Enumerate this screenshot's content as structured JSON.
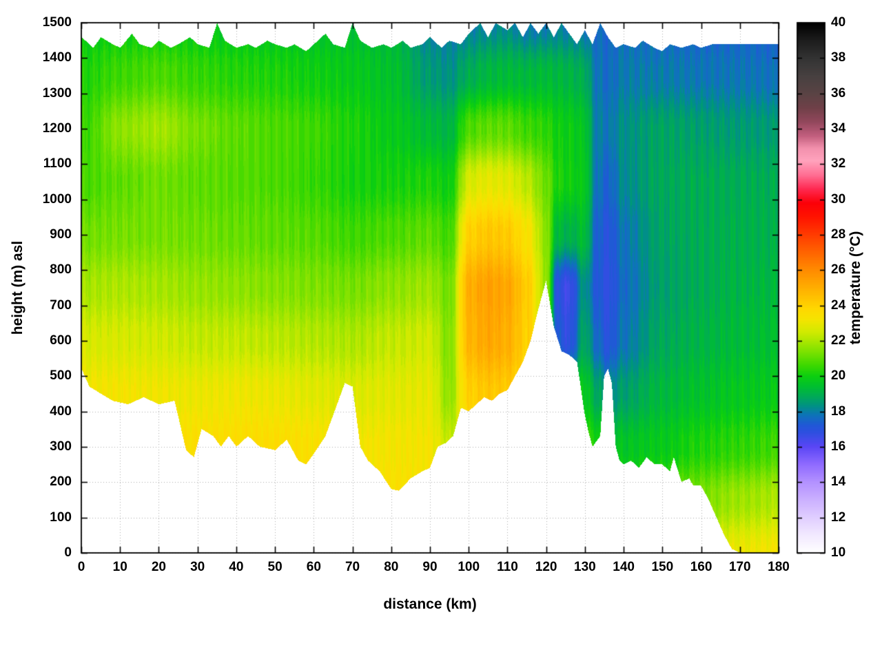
{
  "chart_data": {
    "type": "heatmap",
    "title": "",
    "xlabel": "distance (km)",
    "ylabel": "height (m) asl",
    "colorbar_label": "temperature (°C)",
    "xlim": [
      0,
      180
    ],
    "ylim": [
      0,
      1500
    ],
    "clim": [
      10,
      40
    ],
    "grid": true,
    "legend_position": "colorbar-right",
    "x_ticks": [
      0,
      10,
      20,
      30,
      40,
      50,
      60,
      70,
      80,
      90,
      100,
      110,
      120,
      130,
      140,
      150,
      160,
      170,
      180
    ],
    "y_ticks": [
      0,
      100,
      200,
      300,
      400,
      500,
      600,
      700,
      800,
      900,
      1000,
      1100,
      1200,
      1300,
      1400,
      1500
    ],
    "cb_ticks": [
      10,
      12,
      14,
      16,
      18,
      20,
      22,
      24,
      26,
      28,
      30,
      32,
      34,
      36,
      38,
      40
    ],
    "palette": [
      [
        10.0,
        "#ffffff"
      ],
      [
        11.0,
        "#f2e9ff"
      ],
      [
        12.0,
        "#e0ceff"
      ],
      [
        13.0,
        "#cbb0ff"
      ],
      [
        14.0,
        "#b391ff"
      ],
      [
        15.0,
        "#8f6bff"
      ],
      [
        16.0,
        "#5a46f5"
      ],
      [
        16.8,
        "#2e4fe0"
      ],
      [
        17.2,
        "#2158d8"
      ],
      [
        17.8,
        "#0d74b8"
      ],
      [
        18.3,
        "#009184"
      ],
      [
        18.8,
        "#00a85a"
      ],
      [
        19.4,
        "#00bf30"
      ],
      [
        20.0,
        "#0ccf10"
      ],
      [
        20.6,
        "#3cd800"
      ],
      [
        21.2,
        "#6ee000"
      ],
      [
        21.9,
        "#a5e600"
      ],
      [
        22.5,
        "#d2ea00"
      ],
      [
        23.2,
        "#f5e400"
      ],
      [
        23.8,
        "#ffd800"
      ],
      [
        24.6,
        "#ffbc00"
      ],
      [
        25.4,
        "#ffa000"
      ],
      [
        26.2,
        "#ff8400"
      ],
      [
        27.0,
        "#ff6400"
      ],
      [
        28.0,
        "#ff3c00"
      ],
      [
        29.0,
        "#ff1400"
      ],
      [
        29.8,
        "#fb0008"
      ],
      [
        30.6,
        "#ff2a52"
      ],
      [
        31.4,
        "#ff6f94"
      ],
      [
        32.2,
        "#ffa3bd"
      ],
      [
        32.9,
        "#f391ad"
      ],
      [
        33.6,
        "#c25f7e"
      ],
      [
        34.4,
        "#92475c"
      ],
      [
        35.2,
        "#6f4048"
      ],
      [
        36.0,
        "#5a4344"
      ],
      [
        37.0,
        "#474040"
      ],
      [
        38.0,
        "#333333"
      ],
      [
        39.0,
        "#1d1d1d"
      ],
      [
        40.0,
        "#000000"
      ]
    ],
    "grid_x": [
      0,
      10,
      20,
      30,
      40,
      50,
      60,
      70,
      80,
      90,
      95,
      100,
      105,
      110,
      115,
      120,
      123,
      126,
      130,
      133,
      136,
      140,
      150,
      160,
      170,
      180
    ],
    "grid_y": [
      0,
      150,
      300,
      450,
      600,
      750,
      900,
      1050,
      1200,
      1350,
      1500
    ],
    "temperature": [
      [
        24.0,
        23.6,
        23.2,
        23.2,
        22.6,
        21.9,
        21.2,
        20.7,
        20.5,
        20.2,
        19.8
      ],
      [
        24.0,
        23.7,
        23.4,
        23.2,
        22.6,
        22.0,
        21.3,
        21.0,
        21.6,
        20.6,
        19.9
      ],
      [
        24.0,
        23.7,
        23.4,
        23.1,
        22.5,
        21.9,
        21.3,
        21.2,
        21.9,
        20.8,
        19.9
      ],
      [
        24.1,
        23.8,
        23.5,
        23.0,
        22.3,
        21.7,
        21.2,
        21.0,
        21.3,
        20.5,
        19.8
      ],
      [
        24.2,
        23.9,
        23.6,
        23.1,
        22.3,
        21.6,
        21.1,
        20.9,
        21.0,
        20.3,
        19.7
      ],
      [
        24.3,
        24.0,
        23.6,
        23.0,
        22.2,
        21.5,
        21.0,
        20.8,
        20.8,
        20.2,
        19.6
      ],
      [
        24.1,
        23.8,
        23.4,
        22.8,
        22.1,
        21.4,
        20.9,
        20.5,
        20.6,
        20.0,
        19.5
      ],
      [
        23.8,
        23.5,
        23.2,
        22.7,
        22.0,
        21.3,
        20.6,
        20.1,
        20.2,
        19.8,
        19.4
      ],
      [
        23.7,
        23.5,
        23.2,
        22.8,
        22.3,
        21.6,
        20.8,
        20.1,
        19.8,
        19.5,
        19.2
      ],
      [
        23.6,
        23.4,
        23.2,
        22.9,
        22.5,
        21.8,
        21.0,
        20.2,
        19.3,
        18.5,
        18.0
      ],
      [
        23.2,
        22.9,
        22.3,
        21.6,
        21.4,
        21.2,
        20.6,
        19.9,
        19.1,
        18.3,
        17.9
      ],
      [
        23.8,
        23.6,
        23.4,
        24.0,
        24.8,
        25.0,
        24.0,
        22.6,
        20.8,
        18.9,
        18.0
      ],
      [
        23.9,
        23.7,
        23.5,
        24.3,
        25.2,
        25.4,
        24.3,
        22.9,
        21.0,
        19.2,
        18.1
      ],
      [
        23.9,
        23.7,
        23.6,
        24.2,
        25.0,
        25.2,
        24.2,
        22.8,
        21.0,
        19.3,
        18.2
      ],
      [
        23.8,
        23.6,
        23.5,
        23.6,
        24.0,
        24.2,
        23.4,
        22.2,
        20.6,
        19.2,
        17.8
      ],
      [
        23.5,
        23.3,
        23.0,
        22.8,
        22.4,
        21.8,
        21.6,
        21.2,
        20.4,
        19.3,
        17.9
      ],
      [
        22.5,
        22.0,
        21.3,
        19.8,
        17.2,
        16.8,
        19.2,
        20.2,
        20.0,
        19.2,
        18.0
      ],
      [
        22.3,
        21.8,
        21.2,
        19.5,
        16.8,
        16.5,
        19.0,
        20.0,
        19.9,
        19.1,
        17.9
      ],
      [
        22.0,
        21.4,
        20.6,
        19.8,
        18.8,
        18.4,
        19.4,
        19.8,
        19.6,
        18.9,
        17.8
      ],
      [
        21.8,
        21.0,
        20.2,
        18.8,
        17.6,
        17.2,
        17.4,
        17.8,
        18.0,
        17.8,
        17.6
      ],
      [
        21.6,
        20.8,
        19.8,
        18.2,
        17.0,
        16.8,
        17.0,
        17.4,
        17.8,
        17.6,
        17.5
      ],
      [
        21.8,
        20.8,
        19.6,
        18.6,
        17.8,
        17.6,
        17.8,
        18.2,
        18.3,
        17.9,
        17.6
      ],
      [
        22.2,
        21.0,
        19.8,
        19.2,
        18.8,
        18.6,
        18.7,
        18.8,
        18.7,
        17.9,
        17.5
      ],
      [
        22.6,
        21.4,
        20.2,
        19.5,
        19.1,
        18.9,
        18.9,
        18.9,
        18.6,
        17.8,
        17.4
      ],
      [
        23.0,
        21.8,
        20.4,
        19.7,
        19.3,
        19.1,
        19.0,
        18.9,
        18.5,
        17.8,
        17.4
      ],
      [
        23.2,
        22.0,
        20.6,
        19.8,
        19.4,
        19.2,
        19.0,
        18.9,
        18.5,
        17.7,
        17.3
      ]
    ],
    "terrain": {
      "x": [
        0,
        2,
        5,
        8,
        12,
        16,
        20,
        24,
        27,
        29,
        31,
        34,
        36,
        38,
        40,
        43,
        46,
        50,
        53,
        56,
        58,
        60,
        63,
        66,
        68,
        70,
        72,
        74,
        77,
        80,
        82,
        85,
        88,
        90,
        92,
        94,
        96,
        98,
        100,
        102,
        104,
        106,
        108,
        110,
        112,
        114,
        116,
        118,
        120,
        122,
        124,
        126,
        128,
        130,
        131,
        132,
        134,
        135,
        136,
        137,
        138,
        139,
        140,
        142,
        144,
        146,
        148,
        150,
        152,
        153,
        155,
        157,
        158,
        160,
        162,
        164,
        166,
        168,
        170,
        180
      ],
      "h": [
        520,
        470,
        450,
        430,
        420,
        440,
        420,
        430,
        290,
        270,
        350,
        330,
        300,
        330,
        300,
        330,
        300,
        290,
        320,
        260,
        250,
        280,
        330,
        420,
        480,
        470,
        300,
        260,
        230,
        180,
        175,
        210,
        230,
        240,
        300,
        310,
        330,
        410,
        400,
        420,
        440,
        430,
        450,
        460,
        500,
        540,
        600,
        690,
        770,
        640,
        570,
        560,
        540,
        390,
        340,
        300,
        330,
        500,
        520,
        480,
        300,
        260,
        250,
        260,
        240,
        270,
        250,
        250,
        230,
        270,
        200,
        210,
        190,
        190,
        150,
        100,
        50,
        10,
        0,
        0
      ]
    },
    "top_boundary": {
      "x": [
        0,
        3,
        5,
        8,
        10,
        13,
        15,
        18,
        20,
        23,
        25,
        28,
        30,
        33,
        35,
        37,
        40,
        43,
        45,
        48,
        50,
        53,
        55,
        58,
        60,
        63,
        65,
        68,
        70,
        72,
        75,
        78,
        80,
        83,
        85,
        88,
        90,
        93,
        95,
        98,
        100,
        103,
        105,
        107,
        110,
        112,
        114,
        116,
        118,
        120,
        122,
        124,
        126,
        128,
        130,
        132,
        134,
        136,
        138,
        140,
        143,
        145,
        148,
        150,
        152,
        155,
        158,
        160,
        163,
        166,
        170,
        175,
        180
      ],
      "h": [
        1460,
        1430,
        1460,
        1440,
        1430,
        1470,
        1440,
        1430,
        1450,
        1430,
        1440,
        1460,
        1440,
        1430,
        1500,
        1450,
        1430,
        1440,
        1430,
        1450,
        1440,
        1430,
        1440,
        1420,
        1440,
        1470,
        1440,
        1430,
        1500,
        1450,
        1430,
        1440,
        1430,
        1450,
        1430,
        1440,
        1460,
        1430,
        1450,
        1440,
        1470,
        1500,
        1460,
        1500,
        1480,
        1500,
        1460,
        1500,
        1470,
        1500,
        1460,
        1500,
        1470,
        1440,
        1480,
        1440,
        1500,
        1460,
        1430,
        1440,
        1430,
        1450,
        1430,
        1420,
        1440,
        1430,
        1440,
        1430,
        1440,
        1440,
        1440,
        1440,
        1440
      ]
    }
  }
}
